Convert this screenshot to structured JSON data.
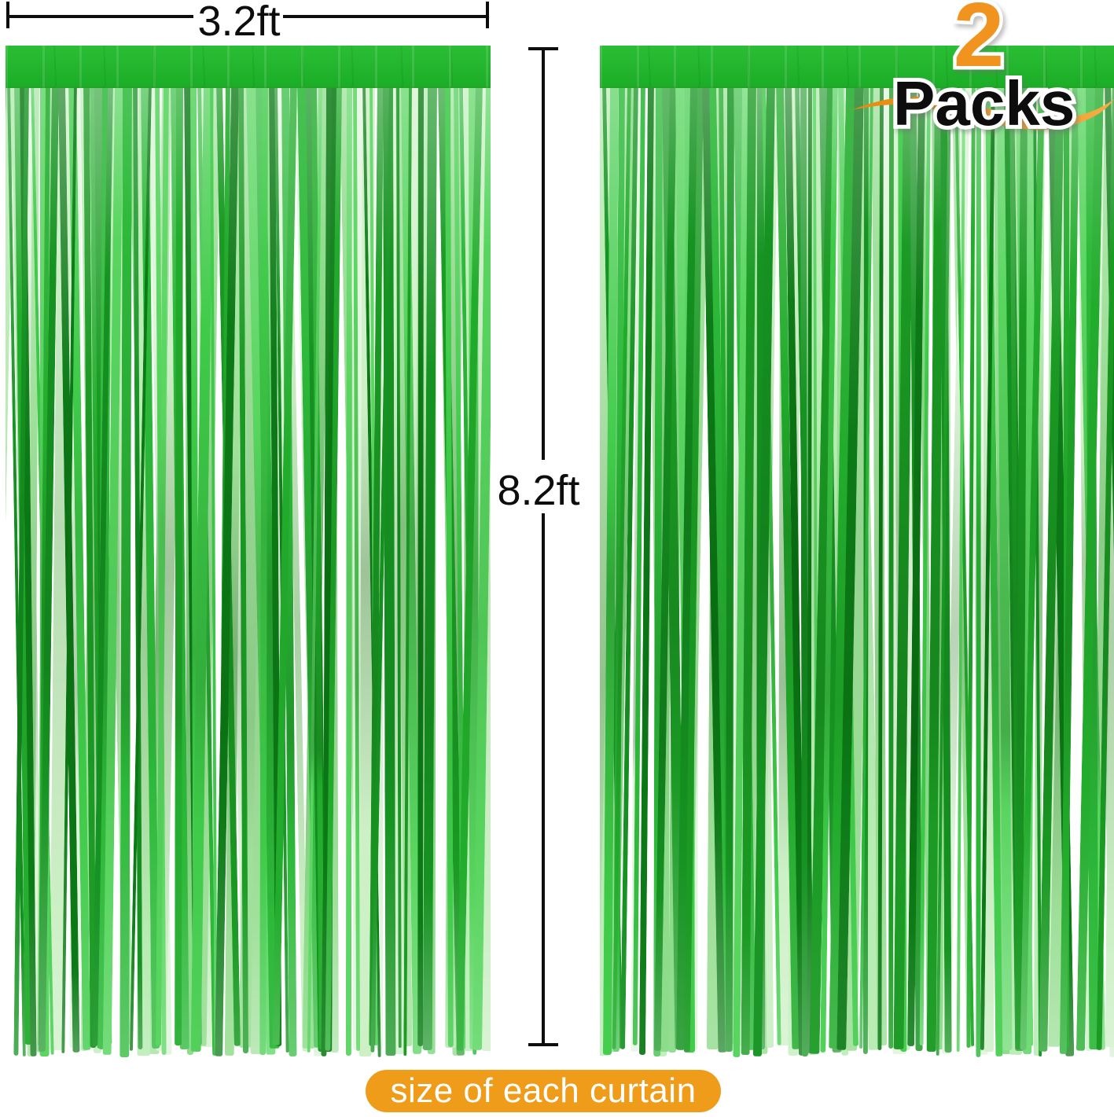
{
  "annotations": {
    "curtain_width": "3.2ft",
    "curtain_height": "8.2ft",
    "pack_count": "2",
    "pack_word": "Packs",
    "caption": "size of each curtain"
  },
  "colors": {
    "accent-orange": "#F0941F",
    "swoosh-start": "#E8890F",
    "swoosh-end": "#F6AD44",
    "caption-bg": "#EF9C1A",
    "caption-text": "#FFFFFF",
    "measure-black": "#0D0D0D",
    "outline-white": "#FFFFFF",
    "band-top": "#2ABE35",
    "band-bottom": "#1CAD27"
  },
  "strand_palettes": {
    "front": [
      "#0C7A16",
      "#169322",
      "#22AC2C",
      "#2DB93A",
      "#3FCB49",
      "#58D55F",
      "#1B9A24"
    ],
    "back": [
      "#9FE09A",
      "#B7ECB2",
      "#CDF0C6",
      "#8CDC8A",
      "#DFF5DB"
    ]
  },
  "curtains": [
    {
      "name": "left-curtain"
    },
    {
      "name": "right-curtain"
    }
  ]
}
